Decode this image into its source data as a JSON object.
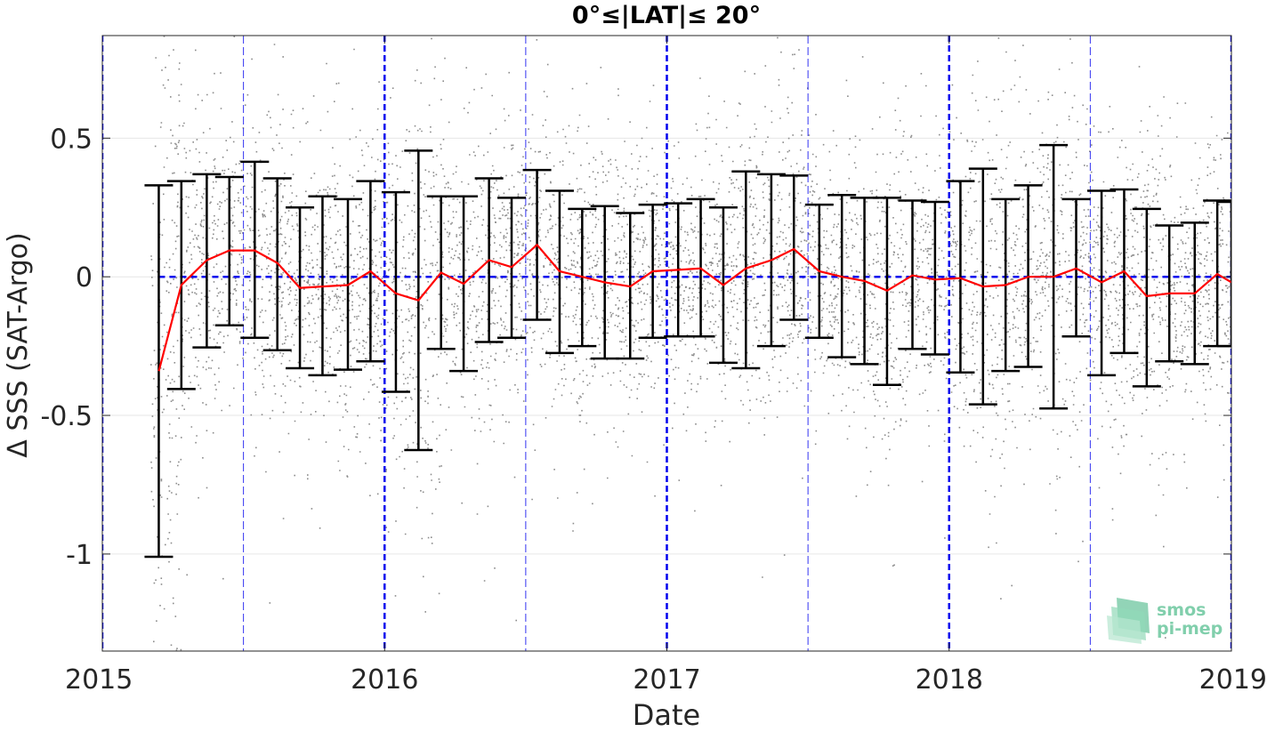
{
  "chart_data": {
    "type": "scatter",
    "title": "0°≤|LAT|≤ 20°",
    "xlabel": "Date",
    "ylabel": "Δ SSS (SAT-Argo)",
    "xlim": [
      2015.0,
      2019.0
    ],
    "ylim": [
      -1.35,
      0.87
    ],
    "x_ticks": [
      {
        "value": 2015,
        "label": "2015"
      },
      {
        "value": 2016,
        "label": "2016"
      },
      {
        "value": 2017,
        "label": "2017"
      },
      {
        "value": 2018,
        "label": "2018"
      },
      {
        "value": 2019,
        "label": "2019"
      }
    ],
    "y_ticks": [
      {
        "value": 0.5,
        "label": "0.5"
      },
      {
        "value": 0,
        "label": "0"
      },
      {
        "value": -0.5,
        "label": "-0.5"
      },
      {
        "value": -1,
        "label": "-1"
      }
    ],
    "grid": "horizontal",
    "year_lines": [
      2015,
      2016,
      2017,
      2018,
      2019
    ],
    "midyear_lines": [
      2015.5,
      2016.5,
      2017.5,
      2018.5
    ],
    "zero_line": 0,
    "colors": {
      "scatter": "#8c8c8c",
      "mean_line": "#ff0000",
      "error_bars": "#000000",
      "reference_lines": "#0000ee",
      "grid": "#e6e6e6"
    },
    "series": [
      {
        "type": "line_with_error_bars",
        "x": [
          2015.2,
          2015.28,
          2015.37,
          2015.45,
          2015.54,
          2015.62,
          2015.7,
          2015.78,
          2015.87,
          2015.95,
          2016.04,
          2016.12,
          2016.2,
          2016.28,
          2016.37,
          2016.45,
          2016.54,
          2016.62,
          2016.7,
          2016.78,
          2016.87,
          2016.95,
          2017.04,
          2017.12,
          2017.2,
          2017.28,
          2017.37,
          2017.45,
          2017.54,
          2017.62,
          2017.7,
          2017.78,
          2017.87,
          2017.95,
          2018.04,
          2018.12,
          2018.2,
          2018.28,
          2018.37,
          2018.45,
          2018.54,
          2018.62,
          2018.7,
          2018.78,
          2018.87,
          2018.95,
          2019.0
        ],
        "mean": [
          -0.34,
          -0.03,
          0.06,
          0.095,
          0.095,
          0.05,
          -0.04,
          -0.035,
          -0.03,
          0.02,
          -0.06,
          -0.085,
          0.015,
          -0.025,
          0.06,
          0.035,
          0.115,
          0.02,
          0.0,
          -0.02,
          -0.035,
          0.02,
          0.025,
          0.03,
          -0.03,
          0.03,
          0.06,
          0.1,
          0.02,
          0.0,
          -0.015,
          -0.05,
          0.005,
          -0.01,
          -0.005,
          -0.035,
          -0.03,
          0.0,
          0.0,
          0.03,
          -0.02,
          0.02,
          -0.07,
          -0.06,
          -0.06,
          0.01,
          -0.02
        ],
        "upper": [
          0.33,
          0.345,
          0.37,
          0.36,
          0.415,
          0.355,
          0.25,
          0.29,
          0.28,
          0.345,
          0.305,
          0.455,
          0.29,
          0.29,
          0.355,
          0.285,
          0.385,
          0.31,
          0.245,
          0.255,
          0.23,
          0.26,
          0.265,
          0.28,
          0.25,
          0.38,
          0.37,
          0.365,
          0.26,
          0.295,
          0.285,
          0.285,
          0.275,
          0.27,
          0.345,
          0.39,
          0.28,
          0.33,
          0.475,
          0.28,
          0.31,
          0.315,
          0.245,
          0.185,
          0.195,
          0.275,
          0.27
        ],
        "lower": [
          -1.01,
          -0.405,
          -0.255,
          -0.175,
          -0.22,
          -0.265,
          -0.33,
          -0.355,
          -0.335,
          -0.305,
          -0.415,
          -0.625,
          -0.26,
          -0.34,
          -0.235,
          -0.22,
          -0.155,
          -0.275,
          -0.25,
          -0.295,
          -0.295,
          -0.22,
          -0.215,
          -0.215,
          -0.31,
          -0.33,
          -0.25,
          -0.155,
          -0.22,
          -0.29,
          -0.315,
          -0.39,
          -0.26,
          -0.28,
          -0.345,
          -0.46,
          -0.34,
          -0.325,
          -0.475,
          -0.215,
          -0.355,
          -0.275,
          -0.395,
          -0.305,
          -0.315,
          -0.25,
          -0.25
        ]
      }
    ]
  },
  "watermark": {
    "line1": "smos",
    "line2": "pi-mep"
  }
}
